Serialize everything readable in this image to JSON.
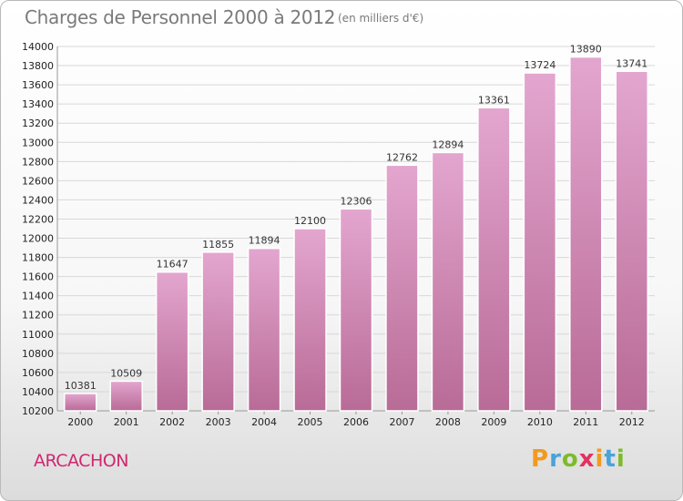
{
  "title": "Charges de Personnel 2000 à 2012",
  "subtitle": "(en milliers d'€)",
  "town": "ARCACHON",
  "logo": {
    "p": "P",
    "r": "r",
    "o": "o",
    "x": "x",
    "i": "i",
    "t": "t",
    "i2": "i"
  },
  "colors": {
    "bar_top": "#e3a6cf",
    "bar_bottom": "#b86b96",
    "town": "#d0286f",
    "grid": "#d8d8d8"
  },
  "chart_data": {
    "type": "bar",
    "title": "Charges de Personnel 2000 à 2012",
    "subtitle": "(en milliers d'€)",
    "categories": [
      "2000",
      "2001",
      "2002",
      "2003",
      "2004",
      "2005",
      "2006",
      "2007",
      "2008",
      "2009",
      "2010",
      "2011",
      "2012"
    ],
    "values": [
      10381,
      10509,
      11647,
      11855,
      11894,
      12100,
      12306,
      12762,
      12894,
      13361,
      13724,
      13890,
      13741
    ],
    "ylim": [
      10200,
      14000
    ],
    "yticks": [
      10200,
      10400,
      10600,
      10800,
      11000,
      11200,
      11400,
      11600,
      11800,
      12000,
      12200,
      12400,
      12600,
      12800,
      13000,
      13200,
      13400,
      13600,
      13800,
      14000
    ],
    "grid": true,
    "legend": "none"
  }
}
